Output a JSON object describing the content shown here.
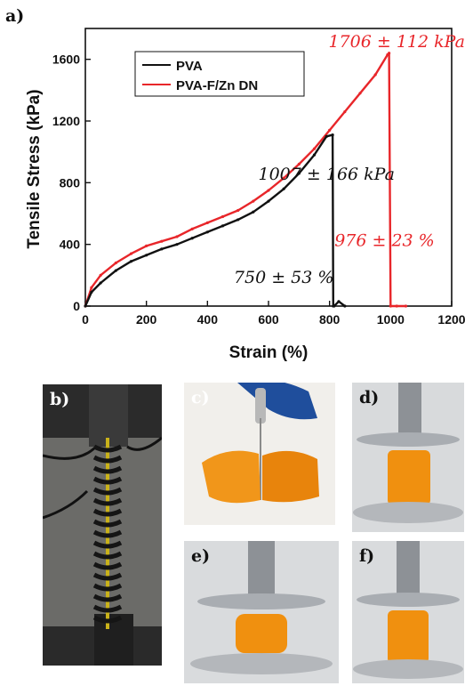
{
  "figure": {
    "panel_labels": {
      "a": "a)",
      "b": "b)",
      "c": "c)",
      "d": "d)",
      "e": "e)",
      "f": "f)"
    }
  },
  "chart_data": {
    "type": "line",
    "xlabel": "Strain (%)",
    "ylabel": "Tensile Stress (kPa)",
    "xlim": [
      0,
      1200
    ],
    "ylim": [
      0,
      1800
    ],
    "xticks": [
      0,
      200,
      400,
      600,
      800,
      1000,
      1200
    ],
    "yticks": [
      0,
      400,
      800,
      1200,
      1600
    ],
    "legend_position": "top-left",
    "grid": false,
    "series": [
      {
        "name": "PVA",
        "color": "#111111",
        "x": [
          0,
          20,
          50,
          100,
          150,
          200,
          250,
          300,
          350,
          400,
          450,
          500,
          550,
          600,
          650,
          700,
          750,
          790,
          810,
          812,
          815,
          830,
          850
        ],
        "y": [
          0,
          90,
          150,
          230,
          290,
          330,
          370,
          400,
          440,
          480,
          520,
          560,
          610,
          680,
          760,
          860,
          980,
          1100,
          1110,
          0,
          0,
          30,
          0
        ]
      },
      {
        "name": "PVA-F/Zn DN",
        "color": "#e8262a",
        "x": [
          0,
          20,
          50,
          100,
          150,
          200,
          250,
          300,
          350,
          400,
          450,
          500,
          550,
          600,
          650,
          700,
          750,
          800,
          850,
          900,
          950,
          990,
          995,
          1000,
          1020,
          1050
        ],
        "y": [
          0,
          120,
          200,
          280,
          340,
          390,
          420,
          450,
          500,
          540,
          580,
          620,
          680,
          750,
          830,
          920,
          1020,
          1140,
          1260,
          1380,
          1500,
          1630,
          1640,
          0,
          0,
          0
        ]
      }
    ],
    "annotations": [
      {
        "text": "1706 ± 112 kPa",
        "color": "#e8262a",
        "x": 1020,
        "y": 1680
      },
      {
        "text": "1007 ± 166 kPa",
        "color": "#111111",
        "x": 790,
        "y": 820
      },
      {
        "text": "976 ± 23 %",
        "color": "#e8262a",
        "x": 980,
        "y": 390
      },
      {
        "text": "750 ± 53 %",
        "color": "#111111",
        "x": 650,
        "y": 150
      }
    ]
  },
  "colors": {
    "pva": "#111111",
    "dn": "#e8262a",
    "gel_orange": "#f0900f",
    "background": "#ffffff"
  }
}
